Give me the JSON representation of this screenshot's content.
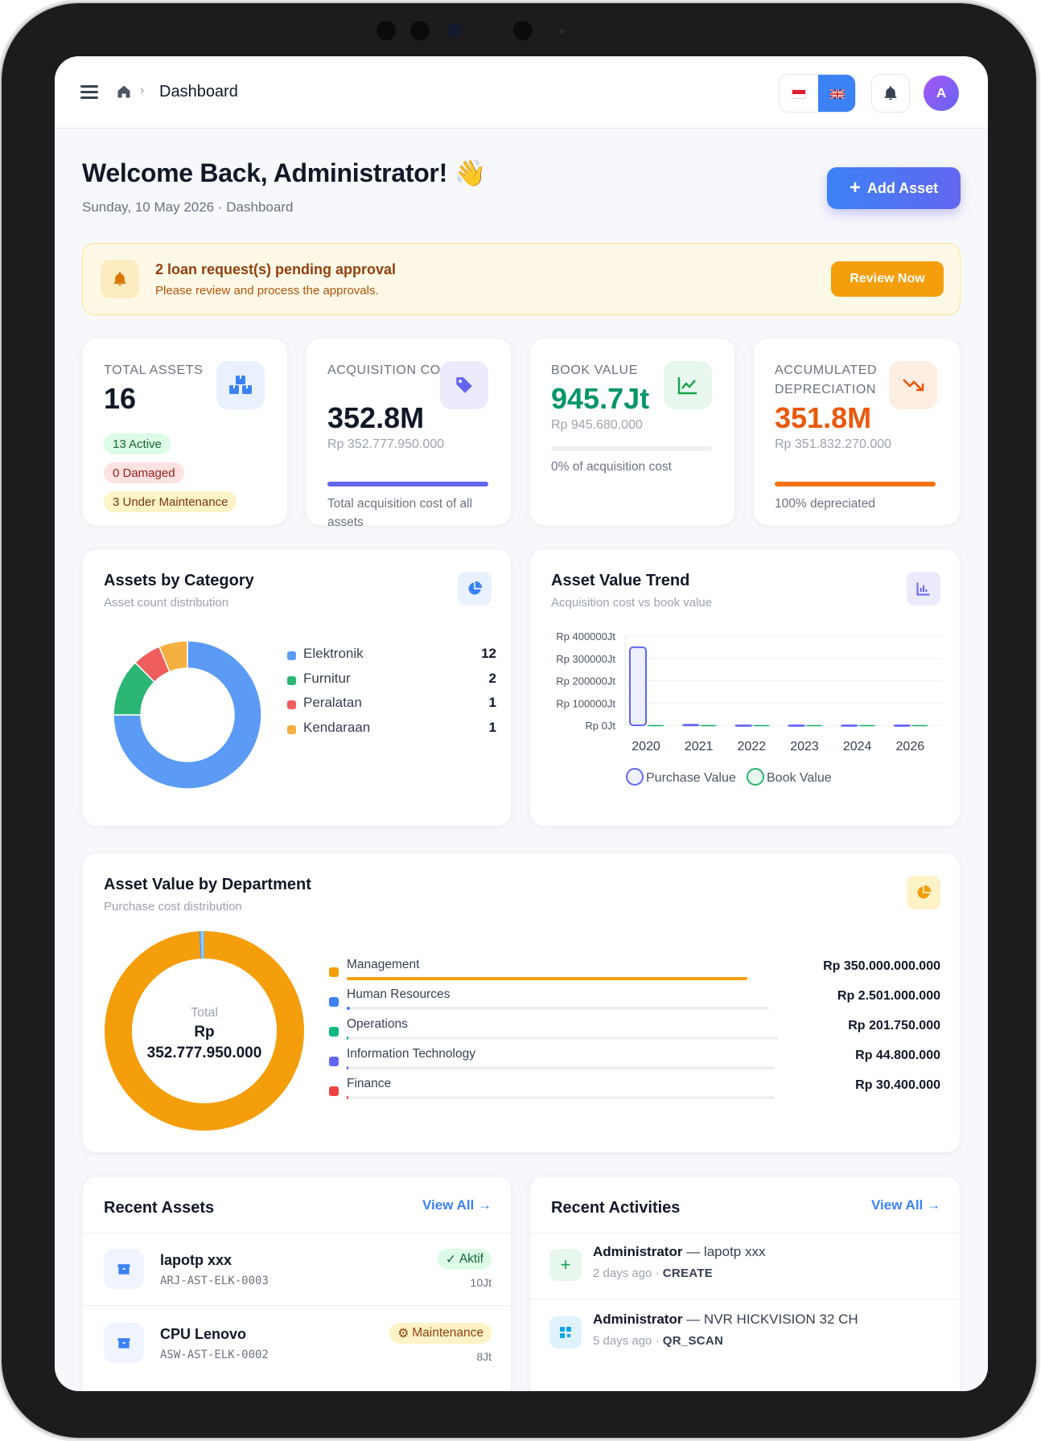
{
  "header": {
    "breadcrumb_current": "Dashboard",
    "avatar_initial": "A",
    "language_active": "en"
  },
  "welcome": {
    "title": "Welcome Back, Administrator!",
    "emoji": "👋",
    "date": "Sunday, 10 May 2026",
    "separator": "·",
    "page": "Dashboard",
    "add_asset_label": "Add Asset"
  },
  "alert": {
    "title": "2 loan request(s) pending approval",
    "subtitle": "Please review and process the approvals.",
    "button": "Review Now"
  },
  "stats": {
    "total_assets": {
      "label": "TOTAL ASSETS",
      "value": "16",
      "chips": [
        "13 Active",
        "0 Damaged",
        "3 Under Maintenance"
      ]
    },
    "acquisition": {
      "label": "ACQUISITION COST",
      "value": "352.8M",
      "sub": "Rp 352.777.950.000",
      "progress_pct": 100,
      "foot": "Total acquisition cost of all assets"
    },
    "book": {
      "label": "BOOK VALUE",
      "value": "945.7Jt",
      "sub": "Rp 945.680.000",
      "progress_pct": 0,
      "foot": "0% of acquisition cost"
    },
    "depreciation": {
      "label": "ACCUMULATED DEPRECIATION",
      "value": "351.8M",
      "sub": "Rp 351.832.270.000",
      "progress_pct": 100,
      "foot": "100% depreciated"
    }
  },
  "category": {
    "title": "Assets by Category",
    "subtitle": "Asset count distribution",
    "items": [
      {
        "name": "Elektronik",
        "count": "12",
        "color": "#5b9bf5"
      },
      {
        "name": "Furnitur",
        "count": "2",
        "color": "#2bb673"
      },
      {
        "name": "Peralatan",
        "count": "1",
        "color": "#ef5d5d"
      },
      {
        "name": "Kendaraan",
        "count": "1",
        "color": "#f5b042"
      }
    ]
  },
  "trend": {
    "title": "Asset Value Trend",
    "subtitle": "Acquisition cost vs book value"
  },
  "chart_data": {
    "type": "bar",
    "categories": [
      "2020",
      "2021",
      "2022",
      "2023",
      "2024",
      "2026"
    ],
    "y_ticks": [
      "Rp 400000Jt",
      "Rp 300000Jt",
      "Rp 200000Jt",
      "Rp 100000Jt",
      "Rp 0Jt"
    ],
    "ylim": [
      0,
      400000
    ],
    "series": [
      {
        "name": "Purchase Value",
        "values": [
          350000,
          2500,
          200,
          45,
          30,
          2
        ],
        "color": "#6366f1"
      },
      {
        "name": "Book Value",
        "values": [
          0,
          0,
          0,
          0,
          0,
          0
        ],
        "color": "#2bb673"
      }
    ]
  },
  "department": {
    "title": "Asset Value by Department",
    "subtitle": "Purchase cost distribution",
    "center_label": "Total",
    "center_currency": "Rp",
    "center_value": "352.777.950.000",
    "items": [
      {
        "name": "Management",
        "value": "Rp 350.000.000.000",
        "pct": 99.2,
        "color": "#f59e0b"
      },
      {
        "name": "Human Resources",
        "value": "Rp 2.501.000.000",
        "pct": 0.71,
        "color": "#3b82f6"
      },
      {
        "name": "Operations",
        "value": "Rp 201.750.000",
        "pct": 0.06,
        "color": "#10b981"
      },
      {
        "name": "Information Technology",
        "value": "Rp 44.800.000",
        "pct": 0.013,
        "color": "#6366f1"
      },
      {
        "name": "Finance",
        "value": "Rp 30.400.000",
        "pct": 0.009,
        "color": "#ef4444"
      }
    ]
  },
  "recent_assets": {
    "title": "Recent Assets",
    "view_all": "View All →",
    "items": [
      {
        "name": "lapotp xxx",
        "code": "ARJ-AST-ELK-0003",
        "status": "Aktif",
        "status_icon": "✓",
        "value": "10Jt"
      },
      {
        "name": "CPU Lenovo",
        "code": "ASW-AST-ELK-0002",
        "status": "Maintenance",
        "status_icon": "⚙",
        "value": "8Jt"
      }
    ]
  },
  "recent_activities": {
    "title": "Recent Activities",
    "view_all": "View All →",
    "items": [
      {
        "user": "Administrator",
        "detail": "— lapotp xxx",
        "time": "2 days ago",
        "sep": "·",
        "action": "CREATE",
        "icon": "plus-icon"
      },
      {
        "user": "Administrator",
        "detail": "— NVR HICKVISION 32 CH",
        "time": "5 days ago",
        "sep": "·",
        "action": "QR_SCAN",
        "icon": "qr-icon"
      }
    ]
  }
}
